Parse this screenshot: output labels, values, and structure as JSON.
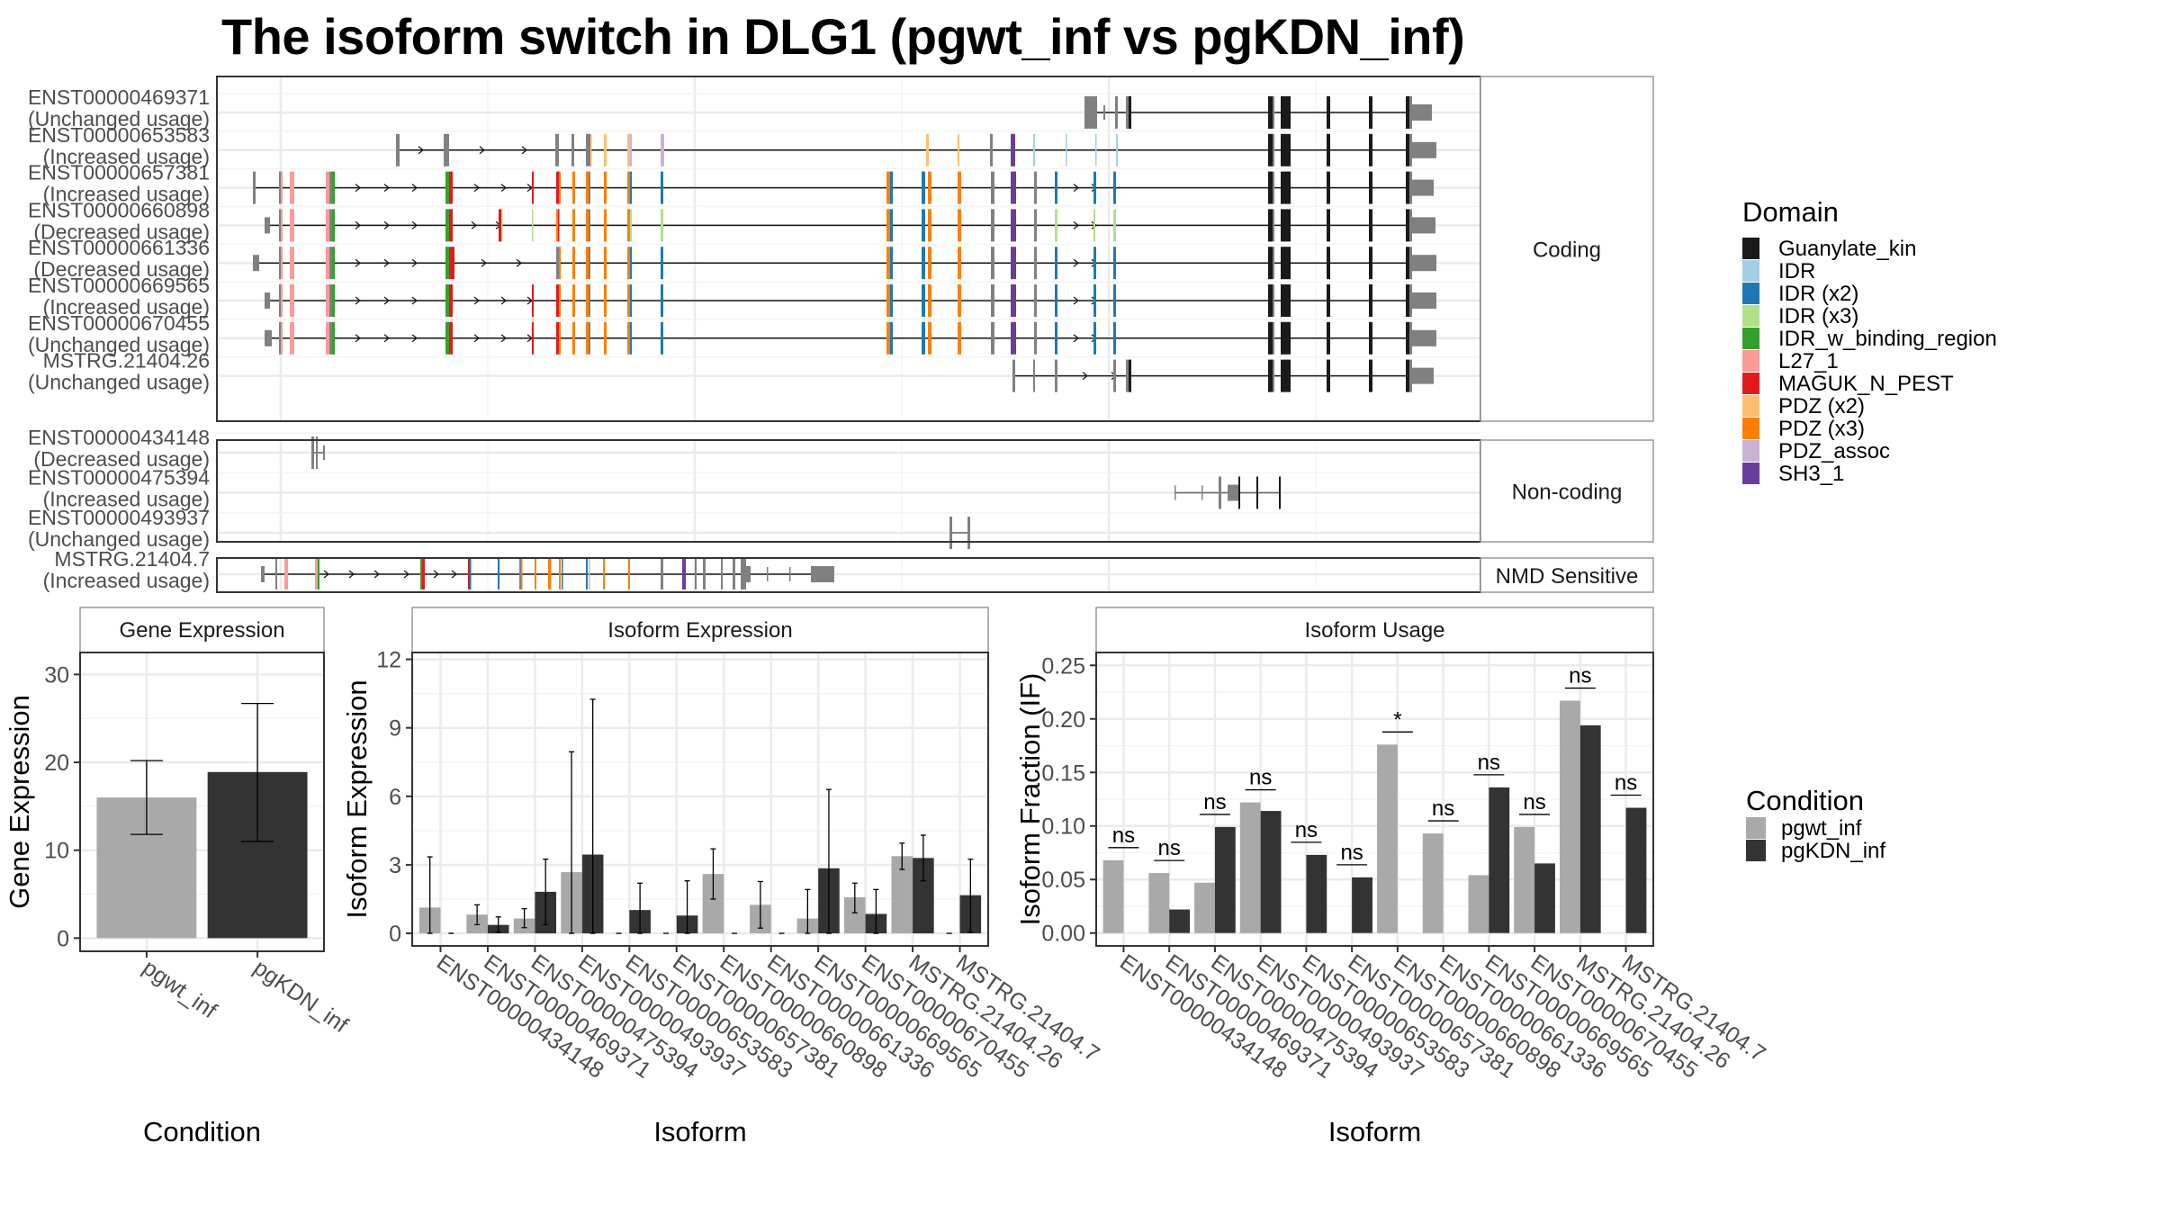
{
  "title": "The isoform switch in DLG1 (pgwt_inf vs pgKDN_inf)",
  "domain_colors": {
    "Guanylate_kin": "#1a1a1a",
    "IDR": "#a6cee3",
    "IDR (x2)": "#1f78b4",
    "IDR (x3)": "#b2df8a",
    "IDR_w_binding_region": "#33a02c",
    "L27_1": "#fb9a99",
    "MAGUK_N_PEST": "#e31a1c",
    "PDZ (x2)": "#fdbf6f",
    "PDZ (x3)": "#ff7f00",
    "PDZ_assoc": "#cab2d6",
    "SH3_1": "#6a3d9a",
    "none": "#808080"
  },
  "condition_colors": {
    "pgwt_inf": "#a9a9a9",
    "pgKDN_inf": "#333333"
  },
  "structure": {
    "coord_range": [
      0,
      1000
    ],
    "panels": [
      {
        "label": "Coding",
        "transcripts": [
          {
            "id": "ENST00000469371",
            "usage": "(Unchanged usage)"
          },
          {
            "id": "ENST00000653583",
            "usage": "(Increased usage)"
          },
          {
            "id": "ENST00000657381",
            "usage": "(Increased usage)"
          },
          {
            "id": "ENST00000660898",
            "usage": "(Decreased usage)"
          },
          {
            "id": "ENST00000661336",
            "usage": "(Decreased usage)"
          },
          {
            "id": "ENST00000669565",
            "usage": "(Increased usage)"
          },
          {
            "id": "ENST00000670455",
            "usage": "(Unchanged usage)"
          },
          {
            "id": "MSTRG.21404.26",
            "usage": "(Unchanged usage)"
          }
        ]
      },
      {
        "label": "Non-coding",
        "transcripts": [
          {
            "id": "ENST00000434148",
            "usage": "(Decreased usage)"
          },
          {
            "id": "ENST00000475394",
            "usage": "(Increased usage)"
          },
          {
            "id": "ENST00000493937",
            "usage": "(Unchanged usage)"
          }
        ]
      },
      {
        "label": "NMD Sensitive",
        "transcripts": [
          {
            "id": "MSTRG.21404.7",
            "usage": "(Increased usage)"
          }
        ]
      }
    ]
  },
  "domain_legend": {
    "title": "Domain",
    "items": [
      "Guanylate_kin",
      "IDR",
      "IDR (x2)",
      "IDR (x3)",
      "IDR_w_binding_region",
      "L27_1",
      "MAGUK_N_PEST",
      "PDZ (x2)",
      "PDZ (x3)",
      "PDZ_assoc",
      "SH3_1"
    ]
  },
  "condition_legend": {
    "title": "Condition",
    "items": [
      "pgwt_inf",
      "pgKDN_inf"
    ]
  },
  "chart_data": [
    {
      "type": "bar",
      "title": "Gene Expression",
      "xlabel": "Condition",
      "ylabel": "Gene Expression",
      "ylim": [
        -1.5,
        32.5
      ],
      "yticks": [
        0,
        10,
        20,
        30
      ],
      "categories": [
        "pgwt_inf",
        "pgKDN_inf"
      ],
      "values": [
        16.0,
        18.9
      ],
      "error_low": [
        11.8,
        11.0
      ],
      "error_high": [
        20.2,
        26.7
      ],
      "grid": true
    },
    {
      "type": "bar",
      "title": "Isoform Expression",
      "xlabel": "Isoform",
      "ylabel": "Isoform Expression",
      "ylim": [
        -0.55,
        12.3
      ],
      "yticks": [
        0,
        3,
        6,
        9,
        12
      ],
      "categories": [
        "ENST00000434148",
        "ENST00000469371",
        "ENST00000475394",
        "ENST00000493937",
        "ENST00000653583",
        "ENST00000657381",
        "ENST00000660898",
        "ENST00000661336",
        "ENST00000669565",
        "ENST00000670455",
        "MSTRG.21404.26",
        "MSTRG.21404.7"
      ],
      "series": [
        {
          "name": "pgwt_inf",
          "values": [
            1.13,
            0.82,
            0.65,
            2.68,
            0,
            0,
            2.6,
            1.25,
            0.65,
            1.58,
            3.38,
            0
          ],
          "error_low": [
            0,
            0.38,
            0.25,
            0,
            0,
            0,
            1.5,
            0.23,
            0,
            0.9,
            2.8,
            0
          ],
          "error_high": [
            3.35,
            1.25,
            1.08,
            7.95,
            0,
            0,
            3.7,
            2.27,
            1.92,
            2.2,
            3.95,
            0
          ]
        },
        {
          "name": "pgKDN_inf",
          "values": [
            0,
            0.37,
            1.82,
            3.45,
            1.02,
            0.78,
            0,
            0,
            2.85,
            0.85,
            3.3,
            1.67
          ],
          "error_low": [
            0,
            0.05,
            0.38,
            0,
            0,
            0,
            0,
            0,
            0,
            0,
            2.3,
            0.05
          ],
          "error_high": [
            0,
            0.72,
            3.25,
            10.25,
            2.2,
            2.3,
            0,
            0,
            6.3,
            1.92,
            4.3,
            3.25
          ]
        }
      ],
      "grid": true
    },
    {
      "type": "bar",
      "title": "Isoform Usage",
      "xlabel": "Isoform",
      "ylabel": "Isoform Fraction (IF)",
      "ylim": [
        -0.012,
        0.262
      ],
      "yticks": [
        "0.00",
        "0.05",
        "0.10",
        "0.15",
        "0.20",
        "0.25"
      ],
      "categories": [
        "ENST00000434148",
        "ENST00000469371",
        "ENST00000475394",
        "ENST00000493937",
        "ENST00000653583",
        "ENST00000657381",
        "ENST00000660898",
        "ENST00000661336",
        "ENST00000669565",
        "ENST00000670455",
        "MSTRG.21404.26",
        "MSTRG.21404.7"
      ],
      "series": [
        {
          "name": "pgwt_inf",
          "values": [
            0.068,
            0.056,
            0.047,
            0.122,
            0,
            0,
            0.176,
            0.093,
            0.054,
            0.099,
            0.217,
            0
          ]
        },
        {
          "name": "pgKDN_inf",
          "values": [
            0,
            0.022,
            0.099,
            0.114,
            0.073,
            0.052,
            0,
            0,
            0.136,
            0.065,
            0.194,
            0.117
          ]
        }
      ],
      "significance": [
        "ns",
        "ns",
        "ns",
        "ns",
        "ns",
        "ns",
        "*",
        "ns",
        "ns",
        "ns",
        "ns",
        "ns"
      ],
      "grid": true
    }
  ]
}
